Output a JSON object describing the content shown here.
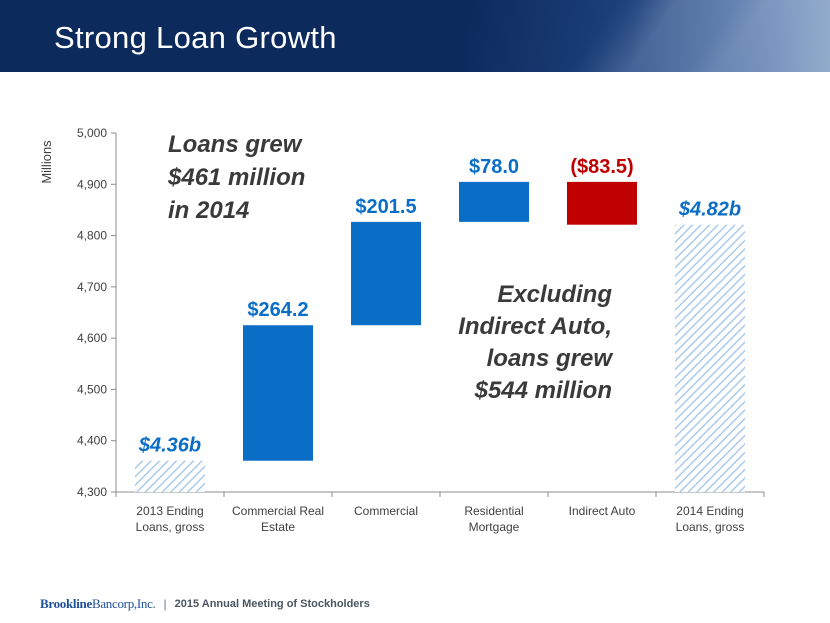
{
  "page": {
    "title": "Strong Loan Growth",
    "footer": {
      "logo_part1": "Brookline",
      "logo_part2": "Bancorp,Inc.",
      "separator": "|",
      "text": "2015 Annual Meeting of Stockholders"
    }
  },
  "colors": {
    "header": "#0d2a5c",
    "increase": "#0a6ec6",
    "decrease": "#c00000",
    "total_hatch": "#9ec3e8",
    "label_blue": "#0a6ec6",
    "label_red": "#c00000",
    "annotation": "#3a3a3a"
  },
  "chart_data": {
    "type": "bar",
    "subtype": "waterfall",
    "ylabel": "Millions",
    "ylim": [
      4300,
      5000
    ],
    "yticks": [
      "4,300",
      "4,400",
      "4,500",
      "4,600",
      "4,700",
      "4,800",
      "4,900",
      "5,000"
    ],
    "ytick_values": [
      4300,
      4400,
      4500,
      4600,
      4700,
      4800,
      4900,
      5000
    ],
    "categories": [
      [
        "2013 Ending",
        "Loans, gross"
      ],
      [
        "Commercial Real",
        "Estate"
      ],
      [
        "Commercial"
      ],
      [
        "Residential",
        "Mortgage"
      ],
      [
        "Indirect Auto"
      ],
      [
        "2014 Ending",
        "Loans, gross"
      ]
    ],
    "bars": [
      {
        "kind": "total",
        "start": 4300,
        "end": 4361,
        "label": "$4.36b"
      },
      {
        "kind": "increase",
        "start": 4361,
        "end": 4625.2,
        "label": "$264.2"
      },
      {
        "kind": "increase",
        "start": 4625.2,
        "end": 4826.7,
        "label": "$201.5"
      },
      {
        "kind": "increase",
        "start": 4826.7,
        "end": 4904.7,
        "label": "$78.0"
      },
      {
        "kind": "decrease",
        "start": 4904.7,
        "end": 4821.2,
        "label": "($83.5)"
      },
      {
        "kind": "total",
        "start": 4300,
        "end": 4821.2,
        "label": "$4.82b"
      }
    ],
    "annotations": [
      {
        "id": "growth",
        "lines": [
          "Loans grew",
          "$461 million",
          "in 2014"
        ]
      },
      {
        "id": "excluding",
        "lines": [
          "Excluding",
          "Indirect Auto,",
          "loans grew",
          "$544 million"
        ]
      }
    ],
    "grid": false,
    "legend": "none"
  }
}
